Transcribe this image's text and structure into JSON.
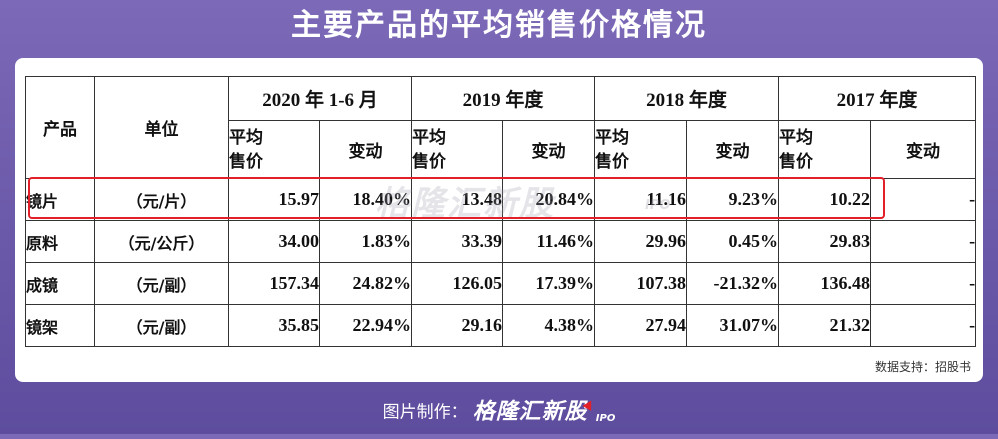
{
  "title": "主要产品的平均销售价格情况",
  "table": {
    "col_product": "产品",
    "col_unit": "单位",
    "periods": [
      "2020 年 1-6 月",
      "2019 年度",
      "2018 年度",
      "2017 年度"
    ],
    "sub_price": "平均售价",
    "sub_price_line1": "平均",
    "sub_price_line2": "售价",
    "sub_change": "变动",
    "rows": [
      {
        "product": "镜片",
        "unit": "（元/片）",
        "cells": [
          "15.97",
          "18.40%",
          "13.48",
          "20.84%",
          "11.16",
          "9.23%",
          "10.22",
          "-"
        ],
        "highlighted": true
      },
      {
        "product": "原料",
        "unit": "（元/公斤）",
        "cells": [
          "34.00",
          "1.83%",
          "33.39",
          "11.46%",
          "29.96",
          "0.45%",
          "29.83",
          "-"
        ],
        "highlighted": false
      },
      {
        "product": "成镜",
        "unit": "（元/副）",
        "cells": [
          "157.34",
          "24.82%",
          "126.05",
          "17.39%",
          "107.38",
          "-21.32%",
          "136.48",
          "-"
        ],
        "highlighted": false
      },
      {
        "product": "镜架",
        "unit": "（元/副）",
        "cells": [
          "35.85",
          "22.94%",
          "29.16",
          "4.38%",
          "27.94",
          "31.07%",
          "21.32",
          "-"
        ],
        "highlighted": false
      }
    ]
  },
  "watermark": {
    "text": "格隆汇新股",
    "suffix": "IPO"
  },
  "source": "数据支持：招股书",
  "footer": {
    "label": "图片制作：",
    "brand": "格隆汇新股",
    "brand_suffix": "IPO"
  },
  "colors": {
    "background": "#6a58a8",
    "highlight_border": "#e2202a",
    "panel": "#ffffff"
  }
}
